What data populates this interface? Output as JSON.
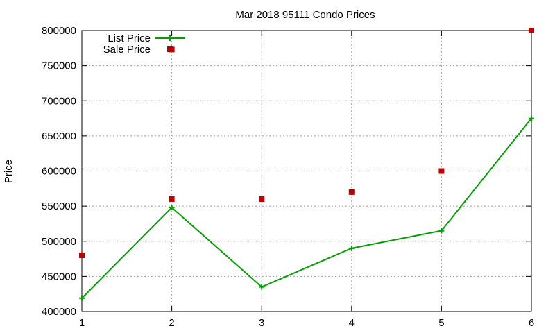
{
  "chart_data": {
    "type": "line",
    "title": "Mar 2018 95111 Condo Prices",
    "xlabel": "",
    "ylabel": "Price",
    "x": [
      1,
      2,
      3,
      4,
      5,
      6
    ],
    "xlim": [
      1,
      6
    ],
    "ylim": [
      400000,
      800000
    ],
    "xticks": [
      "1",
      "2",
      "3",
      "4",
      "5",
      "6"
    ],
    "yticks": [
      "400000",
      "450000",
      "500000",
      "550000",
      "600000",
      "650000",
      "700000",
      "750000",
      "800000"
    ],
    "grid": true,
    "legend_position": "top-left",
    "series": [
      {
        "name": "List Price",
        "style": "line-plus-markers",
        "color": "#00a000",
        "values": [
          419000,
          548000,
          435000,
          490000,
          515000,
          675000
        ]
      },
      {
        "name": "Sale Price",
        "style": "square-markers",
        "color": "#c00000",
        "values": [
          480000,
          560000,
          560000,
          570000,
          600000,
          800000,
          773000
        ],
        "x": [
          1,
          2,
          3,
          4,
          5,
          6,
          2
        ]
      }
    ]
  }
}
